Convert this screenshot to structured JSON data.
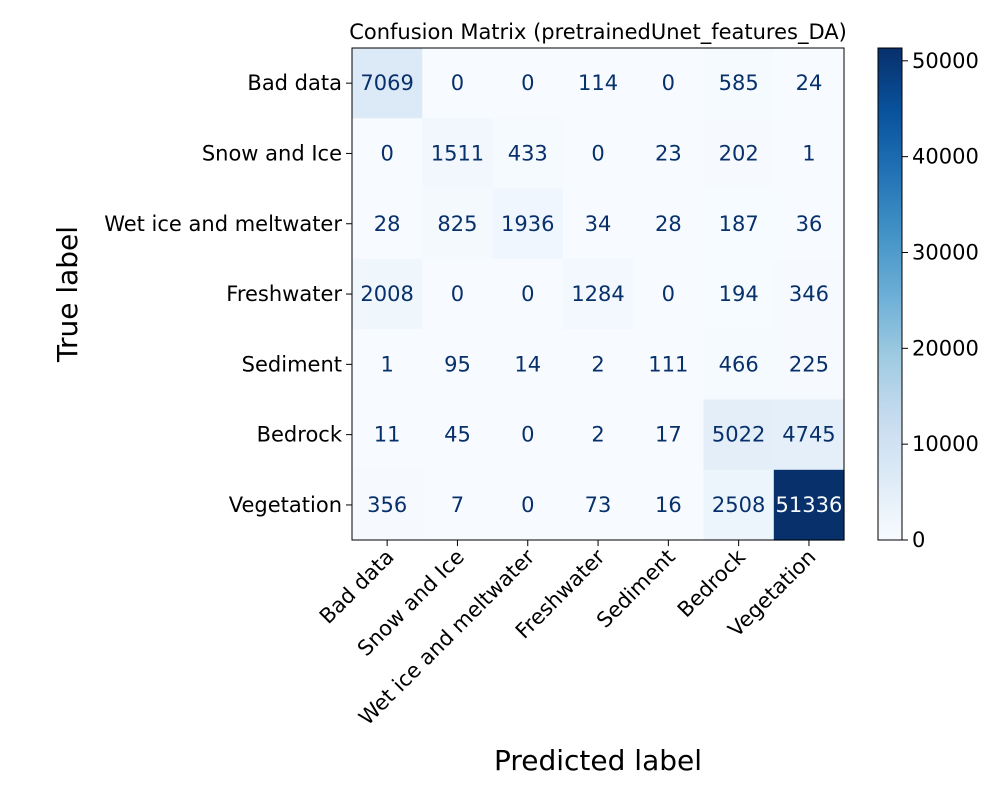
{
  "chart_data": {
    "type": "heatmap",
    "title": "Confusion Matrix (pretrainedUnet_features_DA)",
    "xlabel": "Predicted label",
    "ylabel": "True label",
    "row_labels": [
      "Bad data",
      "Snow and Ice",
      "Wet ice and meltwater",
      "Freshwater",
      "Sediment",
      "Bedrock",
      "Vegetation"
    ],
    "col_labels": [
      "Bad data",
      "Snow and Ice",
      "Wet ice and meltwater",
      "Freshwater",
      "Sediment",
      "Bedrock",
      "Vegetation"
    ],
    "values": [
      [
        7069,
        0,
        0,
        114,
        0,
        585,
        24
      ],
      [
        0,
        1511,
        433,
        0,
        23,
        202,
        1
      ],
      [
        28,
        825,
        1936,
        34,
        28,
        187,
        36
      ],
      [
        2008,
        0,
        0,
        1284,
        0,
        194,
        346
      ],
      [
        1,
        95,
        14,
        2,
        111,
        466,
        225
      ],
      [
        11,
        45,
        0,
        2,
        17,
        5022,
        4745
      ],
      [
        356,
        7,
        0,
        73,
        16,
        2508,
        51336
      ]
    ],
    "colormap": "Blues",
    "colorbar": {
      "min": 0,
      "max": 51336,
      "ticks": [
        0,
        10000,
        20000,
        30000,
        40000,
        50000
      ]
    }
  }
}
